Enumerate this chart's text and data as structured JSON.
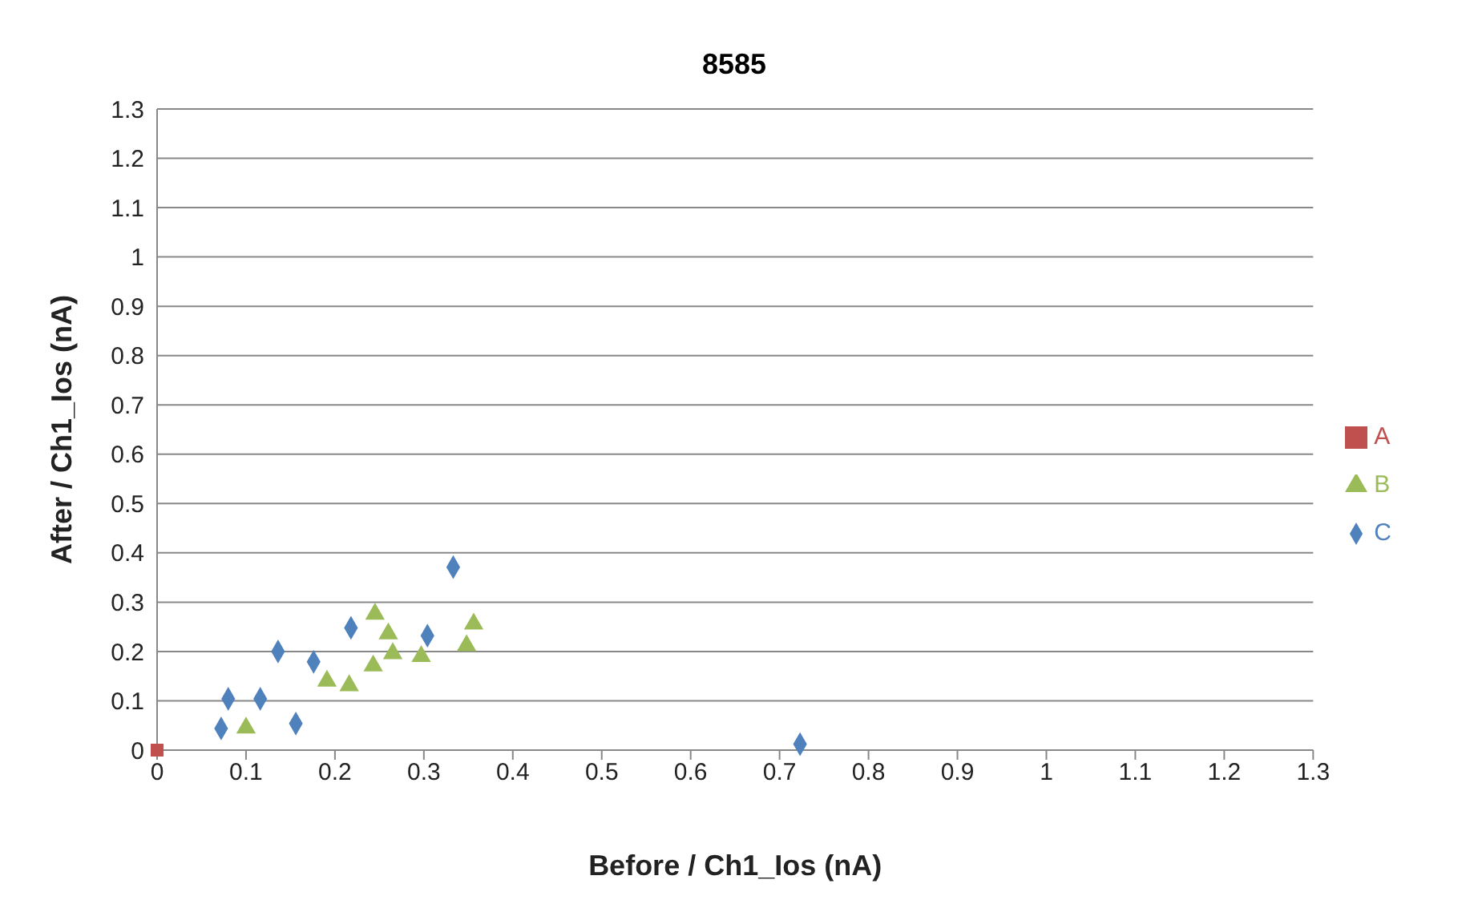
{
  "chart_data": {
    "type": "scatter",
    "title": "8585",
    "xlabel": "Before / Ch1_Ios (nA)",
    "ylabel": "After / Ch1_Ios (nA)",
    "xlim": [
      0,
      1.3
    ],
    "xticks": [
      0,
      0.1,
      0.2,
      0.3,
      0.4,
      0.5,
      0.6,
      0.7,
      0.8,
      0.9,
      1,
      1.1,
      1.2,
      1.3
    ],
    "ylim": [
      0,
      1.3
    ],
    "yticks": [
      0,
      0.1,
      0.2,
      0.3,
      0.4,
      0.5,
      0.6,
      0.7,
      0.8,
      0.9,
      1,
      1.1,
      1.2,
      1.3
    ],
    "grid": "y",
    "legend": "right",
    "series": [
      {
        "name": "A",
        "color": "#c0504d",
        "marker": "square",
        "x": [
          0
        ],
        "values": [
          0
        ]
      },
      {
        "name": "B",
        "color": "#9bbb59",
        "marker": "triangle",
        "x": [
          0.1,
          0.191,
          0.216,
          0.245,
          0.243,
          0.26,
          0.265,
          0.297,
          0.348,
          0.356
        ],
        "values": [
          0.045,
          0.14,
          0.131,
          0.276,
          0.171,
          0.236,
          0.196,
          0.19,
          0.212,
          0.256
        ]
      },
      {
        "name": "C",
        "color": "#4f81bd",
        "marker": "diamond",
        "x": [
          0.072,
          0.08,
          0.116,
          0.136,
          0.156,
          0.176,
          0.218,
          0.304,
          0.333,
          0.723
        ],
        "values": [
          0.044,
          0.104,
          0.104,
          0.2,
          0.054,
          0.179,
          0.248,
          0.232,
          0.371,
          0.012
        ]
      }
    ]
  }
}
